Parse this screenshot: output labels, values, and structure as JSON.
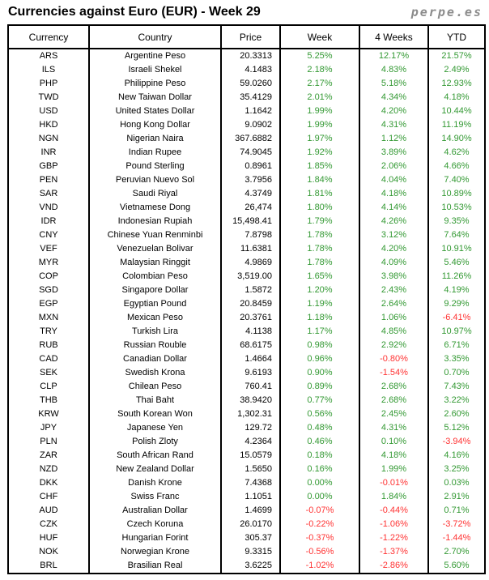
{
  "title": "Currencies against Euro (EUR) - Week 29",
  "logo": "perpe.es",
  "colors": {
    "positive": "#339933",
    "negative": "#FF3333",
    "logo_gray": "#8C8C8C",
    "border": "#000000"
  },
  "chart_data": {
    "type": "table",
    "title": "Currencies against Euro (EUR) - Week 29",
    "columns": [
      "Currency",
      "Country",
      "Price",
      "Week",
      "4 Weeks",
      "YTD"
    ],
    "rows": [
      [
        "ARS",
        "Argentine Peso",
        "20.3313",
        "5.25%",
        "12.17%",
        "21.57%"
      ],
      [
        "ILS",
        "Israeli Shekel",
        "4.1483",
        "2.18%",
        "4.83%",
        "2.49%"
      ],
      [
        "PHP",
        "Philippine Peso",
        "59.0260",
        "2.17%",
        "5.18%",
        "12.93%"
      ],
      [
        "TWD",
        "New Taiwan Dollar",
        "35.4129",
        "2.01%",
        "4.34%",
        "4.18%"
      ],
      [
        "USD",
        "United States Dollar",
        "1.1642",
        "1.99%",
        "4.20%",
        "10.44%"
      ],
      [
        "HKD",
        "Hong Kong Dollar",
        "9.0902",
        "1.99%",
        "4.31%",
        "11.19%"
      ],
      [
        "NGN",
        "Nigerian Naira",
        "367.6882",
        "1.97%",
        "1.12%",
        "14.90%"
      ],
      [
        "INR",
        "Indian Rupee",
        "74.9045",
        "1.92%",
        "3.89%",
        "4.62%"
      ],
      [
        "GBP",
        "Pound Sterling",
        "0.8961",
        "1.85%",
        "2.06%",
        "4.66%"
      ],
      [
        "PEN",
        "Peruvian Nuevo Sol",
        "3.7956",
        "1.84%",
        "4.04%",
        "7.40%"
      ],
      [
        "SAR",
        "Saudi Riyal",
        "4.3749",
        "1.81%",
        "4.18%",
        "10.89%"
      ],
      [
        "VND",
        "Vietnamese Dong",
        "26,474",
        "1.80%",
        "4.14%",
        "10.53%"
      ],
      [
        "IDR",
        "Indonesian Rupiah",
        "15,498.41",
        "1.79%",
        "4.26%",
        "9.35%"
      ],
      [
        "CNY",
        "Chinese Yuan Renminbi",
        "7.8798",
        "1.78%",
        "3.12%",
        "7.64%"
      ],
      [
        "VEF",
        "Venezuelan Bolivar",
        "11.6381",
        "1.78%",
        "4.20%",
        "10.91%"
      ],
      [
        "MYR",
        "Malaysian Ringgit",
        "4.9869",
        "1.78%",
        "4.09%",
        "5.46%"
      ],
      [
        "COP",
        "Colombian Peso",
        "3,519.00",
        "1.65%",
        "3.98%",
        "11.26%"
      ],
      [
        "SGD",
        "Singapore Dollar",
        "1.5872",
        "1.20%",
        "2.43%",
        "4.19%"
      ],
      [
        "EGP",
        "Egyptian Pound",
        "20.8459",
        "1.19%",
        "2.64%",
        "9.29%"
      ],
      [
        "MXN",
        "Mexican Peso",
        "20.3761",
        "1.18%",
        "1.06%",
        "-6.41%"
      ],
      [
        "TRY",
        "Turkish Lira",
        "4.1138",
        "1.17%",
        "4.85%",
        "10.97%"
      ],
      [
        "RUB",
        "Russian Rouble",
        "68.6175",
        "0.98%",
        "2.92%",
        "6.71%"
      ],
      [
        "CAD",
        "Canadian Dollar",
        "1.4664",
        "0.96%",
        "-0.80%",
        "3.35%"
      ],
      [
        "SEK",
        "Swedish Krona",
        "9.6193",
        "0.90%",
        "-1.54%",
        "0.70%"
      ],
      [
        "CLP",
        "Chilean Peso",
        "760.41",
        "0.89%",
        "2.68%",
        "7.43%"
      ],
      [
        "THB",
        "Thai Baht",
        "38.9420",
        "0.77%",
        "2.68%",
        "3.22%"
      ],
      [
        "KRW",
        "South Korean Won",
        "1,302.31",
        "0.56%",
        "2.45%",
        "2.60%"
      ],
      [
        "JPY",
        "Japanese Yen",
        "129.72",
        "0.48%",
        "4.31%",
        "5.12%"
      ],
      [
        "PLN",
        "Polish Zloty",
        "4.2364",
        "0.46%",
        "0.10%",
        "-3.94%"
      ],
      [
        "ZAR",
        "South African Rand",
        "15.0579",
        "0.18%",
        "4.18%",
        "4.16%"
      ],
      [
        "NZD",
        "New Zealand Dollar",
        "1.5650",
        "0.16%",
        "1.99%",
        "3.25%"
      ],
      [
        "DKK",
        "Danish Krone",
        "7.4368",
        "0.00%",
        "-0.01%",
        "0.03%"
      ],
      [
        "CHF",
        "Swiss Franc",
        "1.1051",
        "0.00%",
        "1.84%",
        "2.91%"
      ],
      [
        "AUD",
        "Australian Dollar",
        "1.4699",
        "-0.07%",
        "-0.44%",
        "0.71%"
      ],
      [
        "CZK",
        "Czech Koruna",
        "26.0170",
        "-0.22%",
        "-1.06%",
        "-3.72%"
      ],
      [
        "HUF",
        "Hungarian Forint",
        "305.37",
        "-0.37%",
        "-1.22%",
        "-1.44%"
      ],
      [
        "NOK",
        "Norwegian Krone",
        "9.3315",
        "-0.56%",
        "-1.37%",
        "2.70%"
      ],
      [
        "BRL",
        "Brasilian Real",
        "3.6225",
        "-1.02%",
        "-2.86%",
        "5.60%"
      ]
    ]
  }
}
